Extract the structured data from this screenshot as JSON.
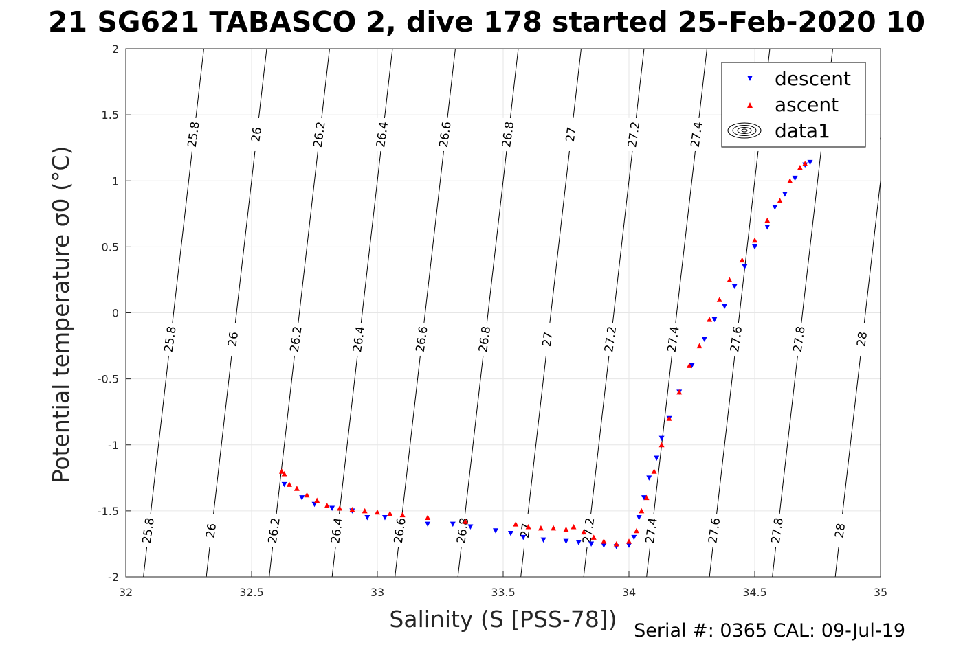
{
  "title": "21 SG621 TABASCO 2, dive 178 started 25-Feb-2020 10",
  "footer": "Serial #: 0365  CAL: 09-Jul-19",
  "chart_data": {
    "type": "scatter",
    "xlabel": "Salinity (S [PSS-78])",
    "ylabel": "Potential temperature σ0 (°C)",
    "xlim": [
      32,
      35
    ],
    "ylim": [
      -2,
      2
    ],
    "xticks": [
      "32",
      "32.5",
      "33",
      "33.5",
      "34",
      "34.5",
      "35"
    ],
    "yticks": [
      "-2",
      "-1.5",
      "-1",
      "-0.5",
      "0",
      "0.5",
      "1",
      "1.5",
      "2"
    ],
    "grid": true,
    "legend_position": "top-right",
    "legend": [
      "descent",
      "ascent",
      "data1"
    ],
    "isopycnals": {
      "levels": [
        "25.8",
        "26",
        "26.2",
        "26.4",
        "26.6",
        "26.8",
        "27",
        "27.2",
        "27.4",
        "27.6",
        "27.8",
        "28"
      ],
      "salinity_at_theta_minus2": [
        32.07,
        32.32,
        32.57,
        32.82,
        33.07,
        33.32,
        33.57,
        33.82,
        34.07,
        34.32,
        34.57,
        34.82
      ],
      "salinity_at_theta_plus2": [
        32.31,
        32.56,
        32.81,
        33.06,
        33.31,
        33.56,
        33.81,
        34.06,
        34.31,
        34.56,
        34.81,
        35.06
      ]
    },
    "series": [
      {
        "name": "descent",
        "color": "#0000ff",
        "marker": "triangle-down",
        "x": [
          32.63,
          32.7,
          32.75,
          32.82,
          32.9,
          32.96,
          33.03,
          33.2,
          33.3,
          33.37,
          33.47,
          33.53,
          33.58,
          33.66,
          33.75,
          33.8,
          33.85,
          33.9,
          33.95,
          34.0,
          34.02,
          34.04,
          34.06,
          34.08,
          34.11,
          34.13,
          34.16,
          34.2,
          34.25,
          34.3,
          34.34,
          34.38,
          34.42,
          34.46,
          34.5,
          34.55,
          34.58,
          34.62,
          34.66,
          34.7,
          34.72
        ],
        "y": [
          -1.3,
          -1.4,
          -1.45,
          -1.48,
          -1.5,
          -1.55,
          -1.55,
          -1.6,
          -1.6,
          -1.62,
          -1.65,
          -1.67,
          -1.7,
          -1.72,
          -1.73,
          -1.74,
          -1.75,
          -1.76,
          -1.77,
          -1.76,
          -1.7,
          -1.55,
          -1.4,
          -1.25,
          -1.1,
          -0.95,
          -0.8,
          -0.6,
          -0.4,
          -0.2,
          -0.05,
          0.05,
          0.2,
          0.35,
          0.5,
          0.65,
          0.8,
          0.9,
          1.02,
          1.12,
          1.14
        ]
      },
      {
        "name": "ascent",
        "color": "#ff0000",
        "marker": "triangle-up",
        "x": [
          32.62,
          32.63,
          32.65,
          32.68,
          32.72,
          32.76,
          32.8,
          32.85,
          32.9,
          32.95,
          33.0,
          33.05,
          33.1,
          33.2,
          33.35,
          33.55,
          33.6,
          33.65,
          33.7,
          33.75,
          33.78,
          33.82,
          33.86,
          33.9,
          33.95,
          34.0,
          34.03,
          34.05,
          34.07,
          34.1,
          34.13,
          34.16,
          34.2,
          34.24,
          34.28,
          34.32,
          34.36,
          34.4,
          34.45,
          34.5,
          34.55,
          34.6,
          34.64,
          34.68,
          34.7
        ],
        "y": [
          -1.2,
          -1.22,
          -1.3,
          -1.33,
          -1.38,
          -1.42,
          -1.46,
          -1.48,
          -1.49,
          -1.5,
          -1.51,
          -1.52,
          -1.53,
          -1.55,
          -1.58,
          -1.6,
          -1.62,
          -1.63,
          -1.63,
          -1.64,
          -1.62,
          -1.66,
          -1.7,
          -1.73,
          -1.75,
          -1.73,
          -1.65,
          -1.5,
          -1.4,
          -1.2,
          -1.0,
          -0.8,
          -0.6,
          -0.4,
          -0.25,
          -0.05,
          0.1,
          0.25,
          0.4,
          0.55,
          0.7,
          0.85,
          1.0,
          1.1,
          1.13
        ]
      }
    ]
  }
}
